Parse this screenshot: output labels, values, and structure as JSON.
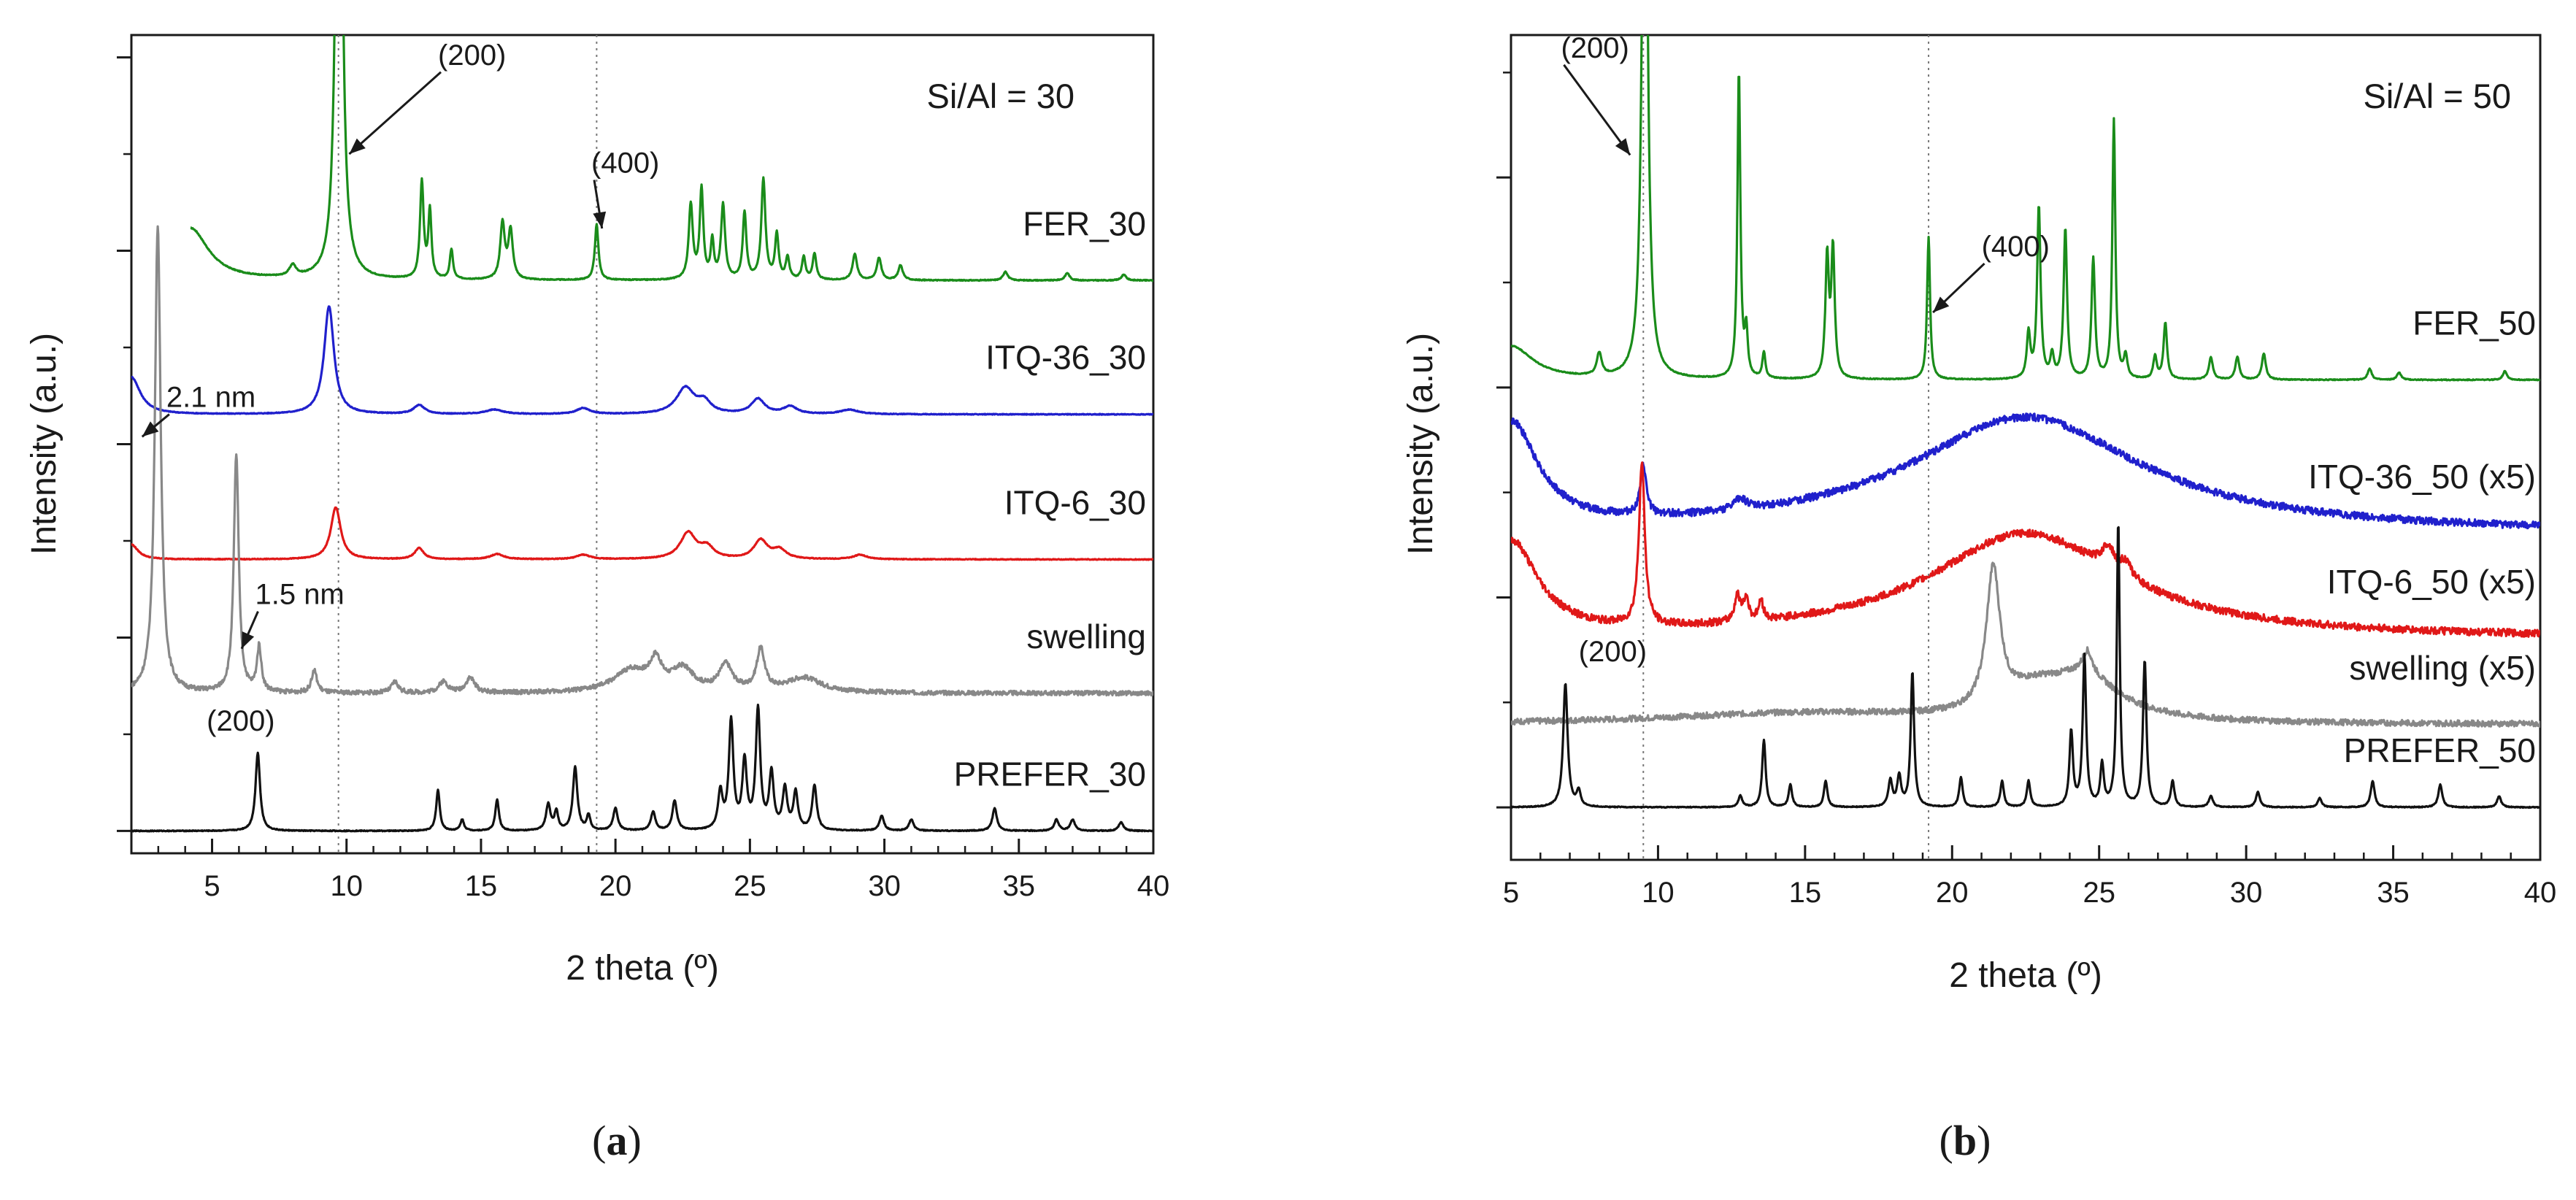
{
  "chart_data": [
    {
      "type": "line",
      "panel_label": "a",
      "title": "Si/Al = 30",
      "xlabel": "2 theta (º)",
      "ylabel": "Intensity (a.u.)",
      "xlim": [
        2,
        40
      ],
      "ylim": [
        0,
        11
      ],
      "xticks": [
        5,
        10,
        15,
        20,
        25,
        30,
        35,
        40
      ],
      "xtick_labels": [
        "5",
        "10",
        "15",
        "20",
        "25",
        "30",
        "35",
        "40"
      ],
      "ytick_values": [
        0.3,
        2.9,
        5.5,
        8.1,
        10.7
      ],
      "ytick_minor_values": [
        1.6,
        4.2,
        6.8,
        9.4
      ],
      "reference_lines_x": [
        9.7,
        19.3
      ],
      "series": [
        {
          "name": "FER_30",
          "color": "#1a8c1a",
          "base": 7.7,
          "x_start": 4.2,
          "noise": 0.006,
          "clip_top": true,
          "peaks": [
            [
              4.2,
              0.7,
              0.8
            ],
            [
              8.0,
              0.15,
              0.15
            ],
            [
              9.72,
              10.0,
              0.12
            ],
            [
              12.8,
              1.3,
              0.08
            ],
            [
              13.1,
              0.9,
              0.07
            ],
            [
              13.9,
              0.4,
              0.07
            ],
            [
              15.8,
              0.75,
              0.1
            ],
            [
              16.1,
              0.65,
              0.1
            ],
            [
              19.3,
              0.75,
              0.08
            ],
            [
              22.8,
              1.0,
              0.09
            ],
            [
              23.2,
              1.2,
              0.08
            ],
            [
              23.6,
              0.5,
              0.07
            ],
            [
              24.0,
              1.0,
              0.09
            ],
            [
              24.8,
              0.9,
              0.08
            ],
            [
              25.5,
              1.35,
              0.09
            ],
            [
              26.0,
              0.6,
              0.08
            ],
            [
              26.4,
              0.3,
              0.08
            ],
            [
              27.0,
              0.3,
              0.08
            ],
            [
              27.4,
              0.35,
              0.08
            ],
            [
              28.9,
              0.35,
              0.1
            ],
            [
              29.8,
              0.3,
              0.1
            ],
            [
              30.6,
              0.2,
              0.1
            ],
            [
              34.5,
              0.12,
              0.1
            ],
            [
              36.8,
              0.1,
              0.1
            ],
            [
              38.9,
              0.08,
              0.1
            ]
          ]
        },
        {
          "name": "ITQ-36_30",
          "color": "#2020cc",
          "base": 5.9,
          "x_start": 2.0,
          "noise": 0.005,
          "clip_top": false,
          "peaks": [
            [
              2.0,
              0.5,
              0.4
            ],
            [
              9.35,
              1.45,
              0.22
            ],
            [
              12.7,
              0.12,
              0.25
            ],
            [
              15.5,
              0.06,
              0.4
            ],
            [
              18.8,
              0.08,
              0.3
            ],
            [
              22.6,
              0.35,
              0.4
            ],
            [
              23.3,
              0.15,
              0.3
            ],
            [
              25.3,
              0.2,
              0.3
            ],
            [
              26.5,
              0.1,
              0.3
            ],
            [
              28.7,
              0.06,
              0.4
            ]
          ]
        },
        {
          "name": "ITQ-6_30",
          "color": "#e01818",
          "base": 3.95,
          "x_start": 2.0,
          "noise": 0.005,
          "clip_top": false,
          "peaks": [
            [
              2.0,
              0.2,
              0.3
            ],
            [
              9.6,
              0.7,
              0.22
            ],
            [
              12.7,
              0.15,
              0.2
            ],
            [
              15.6,
              0.07,
              0.3
            ],
            [
              18.8,
              0.06,
              0.3
            ],
            [
              22.7,
              0.35,
              0.35
            ],
            [
              23.4,
              0.15,
              0.3
            ],
            [
              25.4,
              0.25,
              0.3
            ],
            [
              26.1,
              0.12,
              0.3
            ],
            [
              29.1,
              0.06,
              0.3
            ]
          ]
        },
        {
          "name": "swelling",
          "color": "#888888",
          "base": 2.15,
          "x_start": 2.0,
          "noise": 0.03,
          "clip_top": false,
          "peaks": [
            [
              2.98,
              6.3,
              0.13
            ],
            [
              5.9,
              3.2,
              0.11
            ],
            [
              6.75,
              0.6,
              0.1
            ],
            [
              8.8,
              0.3,
              0.12
            ],
            [
              11.8,
              0.15,
              0.15
            ],
            [
              13.6,
              0.15,
              0.2
            ],
            [
              14.6,
              0.2,
              0.2
            ],
            [
              20.6,
              0.3,
              0.8
            ],
            [
              21.5,
              0.35,
              0.25
            ],
            [
              22.5,
              0.3,
              0.5
            ],
            [
              24.1,
              0.35,
              0.3
            ],
            [
              25.4,
              0.55,
              0.18
            ],
            [
              27.0,
              0.2,
              0.8
            ]
          ]
        },
        {
          "name": "PREFER_30",
          "color": "#111111",
          "base": 0.3,
          "x_start": 2.0,
          "noise": 0.006,
          "clip_top": false,
          "peaks": [
            [
              6.7,
              1.05,
              0.1
            ],
            [
              13.4,
              0.55,
              0.08
            ],
            [
              14.3,
              0.15,
              0.08
            ],
            [
              15.6,
              0.42,
              0.08
            ],
            [
              17.5,
              0.35,
              0.1
            ],
            [
              17.8,
              0.25,
              0.08
            ],
            [
              18.5,
              0.85,
              0.1
            ],
            [
              19.0,
              0.2,
              0.08
            ],
            [
              20.0,
              0.3,
              0.1
            ],
            [
              21.4,
              0.25,
              0.1
            ],
            [
              22.2,
              0.4,
              0.1
            ],
            [
              23.9,
              0.5,
              0.1
            ],
            [
              24.3,
              1.45,
              0.1
            ],
            [
              24.8,
              0.9,
              0.1
            ],
            [
              25.3,
              1.6,
              0.1
            ],
            [
              25.8,
              0.75,
              0.1
            ],
            [
              26.3,
              0.55,
              0.1
            ],
            [
              26.7,
              0.5,
              0.1
            ],
            [
              27.4,
              0.6,
              0.1
            ],
            [
              29.9,
              0.2,
              0.1
            ],
            [
              31.0,
              0.15,
              0.1
            ],
            [
              34.1,
              0.3,
              0.1
            ],
            [
              36.4,
              0.15,
              0.1
            ],
            [
              37.0,
              0.15,
              0.1
            ],
            [
              38.8,
              0.12,
              0.1
            ]
          ]
        }
      ],
      "series_labels": [
        "FER_30",
        "ITQ-36_30",
        "ITQ-6_30",
        "swelling",
        "PREFER_30"
      ],
      "annotations": [
        {
          "text": "(200)",
          "x": 13.4,
          "y": 10.6,
          "arrow_to": [
            10.1,
            9.4
          ]
        },
        {
          "text": "(400)",
          "x": 19.1,
          "y": 9.15,
          "arrow_to": [
            19.5,
            8.4
          ]
        },
        {
          "text": "2.1 nm",
          "x": 3.3,
          "y": 6.0,
          "arrow_to": [
            2.4,
            5.6
          ]
        },
        {
          "text": "1.5 nm",
          "x": 6.6,
          "y": 3.35,
          "arrow_to": [
            6.1,
            2.75
          ]
        },
        {
          "text": "(200)",
          "x": 4.8,
          "y": 1.65,
          "arrow_to": null
        }
      ]
    },
    {
      "type": "line",
      "panel_label": "b",
      "title": "Si/Al = 50",
      "xlabel": "2 theta (º)",
      "ylabel": "Intensity (a.u.)",
      "xlim": [
        5,
        40
      ],
      "ylim": [
        0,
        11
      ],
      "xticks": [
        5,
        10,
        15,
        20,
        25,
        30,
        35,
        40
      ],
      "xtick_labels": [
        "5",
        "10",
        "15",
        "20",
        "25",
        "30",
        "35",
        "40"
      ],
      "ytick_values": [
        0.7,
        3.5,
        6.3,
        9.1
      ],
      "ytick_minor_values": [
        2.1,
        4.9,
        7.7,
        10.5
      ],
      "reference_lines_x": [
        9.5,
        19.2
      ],
      "series": [
        {
          "name": "FER_50",
          "color": "#1a8c1a",
          "base": 6.4,
          "x_start": 5.0,
          "noise": 0.006,
          "clip_top": true,
          "peaks": [
            [
              5.0,
              0.45,
              0.9
            ],
            [
              8.0,
              0.3,
              0.1
            ],
            [
              9.55,
              10.0,
              0.1
            ],
            [
              12.75,
              4.1,
              0.06
            ],
            [
              13.0,
              0.6,
              0.06
            ],
            [
              13.6,
              0.35,
              0.06
            ],
            [
              15.75,
              1.6,
              0.07
            ],
            [
              15.95,
              1.7,
              0.07
            ],
            [
              19.2,
              1.9,
              0.06
            ],
            [
              22.6,
              0.6,
              0.07
            ],
            [
              22.95,
              2.3,
              0.07
            ],
            [
              23.4,
              0.3,
              0.07
            ],
            [
              23.85,
              2.0,
              0.07
            ],
            [
              24.8,
              1.6,
              0.07
            ],
            [
              25.5,
              3.45,
              0.06
            ],
            [
              25.9,
              0.3,
              0.07
            ],
            [
              26.9,
              0.3,
              0.07
            ],
            [
              27.25,
              0.75,
              0.07
            ],
            [
              28.8,
              0.3,
              0.08
            ],
            [
              29.7,
              0.3,
              0.08
            ],
            [
              30.6,
              0.35,
              0.08
            ],
            [
              34.2,
              0.15,
              0.08
            ],
            [
              35.2,
              0.1,
              0.08
            ],
            [
              38.8,
              0.12,
              0.08
            ]
          ]
        },
        {
          "name": "ITQ-36_50 (x5)",
          "color": "#2020cc",
          "base": 4.35,
          "x_start": 5.0,
          "noise": 0.05,
          "clip_top": false,
          "peaks": [
            [
              5.0,
              1.4,
              1.1
            ],
            [
              9.5,
              0.65,
              0.12
            ],
            [
              12.8,
              0.15,
              0.25
            ],
            [
              22.5,
              1.55,
              4.8
            ]
          ]
        },
        {
          "name": "ITQ-6_50 (x5)",
          "color": "#e01818",
          "base": 2.95,
          "x_start": 5.0,
          "noise": 0.05,
          "clip_top": false,
          "peaks": [
            [
              5.0,
              1.25,
              1.1
            ],
            [
              9.45,
              2.15,
              0.12
            ],
            [
              12.7,
              0.35,
              0.12
            ],
            [
              13.0,
              0.3,
              0.1
            ],
            [
              13.5,
              0.25,
              0.1
            ],
            [
              22.5,
              1.4,
              4.0
            ],
            [
              25.3,
              0.3,
              0.25
            ],
            [
              25.9,
              0.2,
              0.25
            ]
          ]
        },
        {
          "name": "swelling (x5)",
          "color": "#888888",
          "base": 1.8,
          "x_start": 5.0,
          "noise": 0.04,
          "clip_top": false,
          "peaks": [
            [
              15.0,
              0.15,
              6.0
            ],
            [
              21.4,
              1.85,
              0.28
            ],
            [
              22.8,
              0.3,
              1.2
            ],
            [
              24.5,
              0.55,
              1.5
            ],
            [
              24.6,
              0.3,
              0.2
            ]
          ]
        },
        {
          "name": "PREFER_50",
          "color": "#111111",
          "base": 0.7,
          "x_start": 5.0,
          "noise": 0.006,
          "clip_top": false,
          "peaks": [
            [
              6.85,
              1.65,
              0.09
            ],
            [
              7.3,
              0.2,
              0.08
            ],
            [
              12.8,
              0.15,
              0.08
            ],
            [
              13.6,
              0.9,
              0.07
            ],
            [
              14.5,
              0.3,
              0.07
            ],
            [
              15.7,
              0.35,
              0.07
            ],
            [
              17.9,
              0.35,
              0.08
            ],
            [
              18.2,
              0.4,
              0.08
            ],
            [
              18.65,
              1.8,
              0.07
            ],
            [
              20.3,
              0.4,
              0.07
            ],
            [
              21.7,
              0.35,
              0.07
            ],
            [
              22.6,
              0.35,
              0.07
            ],
            [
              24.05,
              1.0,
              0.07
            ],
            [
              24.5,
              2.0,
              0.07
            ],
            [
              25.1,
              0.55,
              0.07
            ],
            [
              25.65,
              3.8,
              0.06
            ],
            [
              26.55,
              1.95,
              0.07
            ],
            [
              27.5,
              0.35,
              0.07
            ],
            [
              28.8,
              0.15,
              0.08
            ],
            [
              30.4,
              0.2,
              0.08
            ],
            [
              32.5,
              0.12,
              0.08
            ],
            [
              34.3,
              0.35,
              0.08
            ],
            [
              36.6,
              0.3,
              0.08
            ],
            [
              38.6,
              0.15,
              0.08
            ]
          ]
        }
      ],
      "series_labels": [
        "FER_50",
        "ITQ-36_50 (x5)",
        "ITQ-6_50 (x5)",
        "swelling (x5)",
        "PREFER_50"
      ],
      "annotations": [
        {
          "text": "(200)",
          "x": 6.7,
          "y": 10.7,
          "arrow_to": [
            9.05,
            9.4
          ]
        },
        {
          "text": "(400)",
          "x": 21.0,
          "y": 8.05,
          "arrow_to": [
            19.35,
            7.3
          ]
        },
        {
          "text": "(200)",
          "x": 7.3,
          "y": 2.65,
          "arrow_to": null
        }
      ]
    }
  ]
}
